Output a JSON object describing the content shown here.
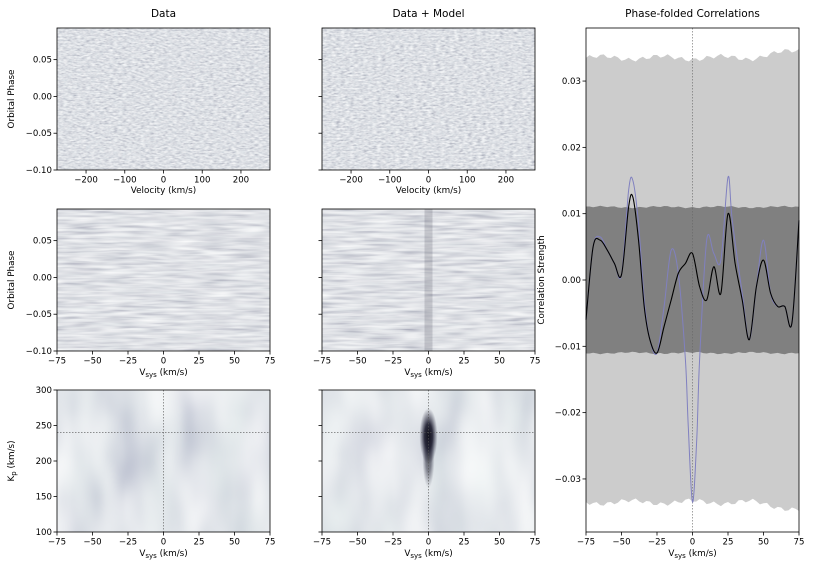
{
  "figure": {
    "columns": [
      "Data",
      "Data + Model",
      "Phase-folded Correlations"
    ]
  },
  "chart_data": [
    {
      "id": "data-phase-velocity",
      "type": "heatmap",
      "title": "Data",
      "xlabel": "Velocity (km/s)",
      "ylabel": "Orbital Phase",
      "xlim": [
        -275,
        275
      ],
      "ylim": [
        -0.1,
        0.093
      ],
      "xticks": [
        -200,
        -100,
        0,
        100,
        200
      ],
      "yticks": [
        -0.1,
        -0.05,
        0.0,
        0.05
      ],
      "ytick_labels": [
        "−0.10",
        "−0.05",
        "0.00",
        "0.05"
      ],
      "xtick_labels": [
        "−200",
        "−100",
        "0",
        "100",
        "200"
      ]
    },
    {
      "id": "datamodel-phase-velocity",
      "type": "heatmap",
      "title": "Data + Model",
      "xlabel": "Velocity (km/s)",
      "xlim": [
        -275,
        275
      ],
      "ylim": [
        -0.1,
        0.093
      ],
      "xticks": [
        -200,
        -100,
        0,
        100,
        200
      ],
      "xtick_labels": [
        "−200",
        "−100",
        "0",
        "100",
        "200"
      ]
    },
    {
      "id": "data-phase-vsys",
      "type": "heatmap",
      "xlabel": "V",
      "xlabel_sub": "sys",
      "xlabel_unit": " (km/s)",
      "ylabel": "Orbital Phase",
      "xlim": [
        -75,
        75
      ],
      "ylim": [
        -0.1,
        0.093
      ],
      "xticks": [
        -75,
        -50,
        -25,
        0,
        25,
        50,
        75
      ],
      "xtick_labels": [
        "−75",
        "−50",
        "−25",
        "0",
        "25",
        "50",
        "75"
      ],
      "yticks": [
        -0.1,
        -0.05,
        0.0,
        0.05
      ],
      "ytick_labels": [
        "−0.10",
        "−0.05",
        "0.00",
        "0.05"
      ]
    },
    {
      "id": "datamodel-phase-vsys",
      "type": "heatmap",
      "xlabel": "V",
      "xlabel_sub": "sys",
      "xlabel_unit": " (km/s)",
      "xlim": [
        -75,
        75
      ],
      "ylim": [
        -0.1,
        0.093
      ],
      "xticks": [
        -75,
        -50,
        -25,
        0,
        25,
        50,
        75
      ],
      "xtick_labels": [
        "−75",
        "−50",
        "−25",
        "0",
        "25",
        "50",
        "75"
      ]
    },
    {
      "id": "data-kp-vsys",
      "type": "heatmap",
      "xlabel": "V",
      "xlabel_sub": "sys",
      "xlabel_unit": " (km/s)",
      "ylabel": "K",
      "ylabel_sub": "p",
      "ylabel_unit": " (km/s)",
      "xlim": [
        -75,
        75
      ],
      "ylim": [
        100,
        300
      ],
      "xticks": [
        -75,
        -50,
        -25,
        0,
        25,
        50,
        75
      ],
      "xtick_labels": [
        "−75",
        "−50",
        "−25",
        "0",
        "25",
        "50",
        "75"
      ],
      "yticks": [
        100,
        150,
        200,
        250,
        300
      ],
      "ytick_labels": [
        "100",
        "150",
        "200",
        "250",
        "300"
      ],
      "guide_vsys": 0,
      "guide_kp": 240
    },
    {
      "id": "datamodel-kp-vsys",
      "type": "heatmap",
      "xlabel": "V",
      "xlabel_sub": "sys",
      "xlabel_unit": " (km/s)",
      "xlim": [
        -75,
        75
      ],
      "ylim": [
        100,
        300
      ],
      "xticks": [
        -75,
        -50,
        -25,
        0,
        25,
        50,
        75
      ],
      "xtick_labels": [
        "−75",
        "−50",
        "−25",
        "0",
        "25",
        "50",
        "75"
      ],
      "guide_vsys": 0,
      "guide_kp": 240,
      "peak": {
        "vsys": 0,
        "kp": 235
      }
    },
    {
      "id": "phase-folded-correlations",
      "type": "line",
      "title": "Phase-folded Correlations",
      "xlabel": "V",
      "xlabel_sub": "sys",
      "xlabel_unit": " (km/s)",
      "ylabel": "Correlation Strength",
      "xlim": [
        -75,
        75
      ],
      "ylim": [
        -0.038,
        0.038
      ],
      "xticks": [
        -75,
        -50,
        -25,
        0,
        25,
        50,
        75
      ],
      "xtick_labels": [
        "−75",
        "−50",
        "−25",
        "0",
        "25",
        "50",
        "75"
      ],
      "yticks": [
        -0.03,
        -0.02,
        -0.01,
        0.0,
        0.01,
        0.02,
        0.03
      ],
      "ytick_labels": [
        "−0.03",
        "−0.02",
        "−0.01",
        "0.00",
        "0.01",
        "0.02",
        "0.03"
      ],
      "bands": [
        {
          "level": "3sigma",
          "lower": -0.0335,
          "upper": 0.0335,
          "color": "#cccccc"
        },
        {
          "level": "1sigma",
          "lower": -0.011,
          "upper": 0.011,
          "color": "#808080"
        }
      ],
      "guide_vsys": 0,
      "series": [
        {
          "color": "#000000",
          "x": [
            -75,
            -70,
            -65,
            -60,
            -55,
            -50,
            -45,
            -42,
            -38,
            -34,
            -30,
            -25,
            -20,
            -15,
            -10,
            -5,
            0,
            5,
            10,
            15,
            20,
            25,
            30,
            35,
            40,
            45,
            50,
            55,
            60,
            65,
            70,
            75
          ],
          "values": [
            -0.006,
            0.005,
            0.006,
            0.0045,
            0.0025,
            0.0008,
            0.011,
            0.0125,
            0.006,
            -0.004,
            -0.009,
            -0.011,
            -0.007,
            -0.003,
            0.001,
            0.0025,
            0.004,
            -0.001,
            -0.003,
            0.002,
            -0.002,
            0.01,
            0.0025,
            -0.003,
            -0.009,
            -0.001,
            0.003,
            -0.002,
            -0.004,
            -0.004,
            -0.0065,
            0.009
          ]
        },
        {
          "color": "#8080c0",
          "x": [
            -75,
            -70,
            -65,
            -60,
            -55,
            -50,
            -45,
            -42,
            -38,
            -34,
            -30,
            -25,
            -20,
            -15,
            -10,
            -5,
            -3,
            0,
            3,
            5,
            10,
            15,
            20,
            25,
            28,
            35,
            40,
            45,
            50,
            55,
            60,
            65,
            70,
            75
          ],
          "values": [
            -0.006,
            0.005,
            0.0065,
            0.0045,
            0.0025,
            0.0008,
            0.0135,
            0.015,
            0.0085,
            -0.003,
            -0.009,
            -0.011,
            -0.004,
            0.0045,
            0.001,
            -0.012,
            -0.022,
            -0.0335,
            -0.024,
            -0.012,
            0.006,
            0.004,
            0.003,
            0.0155,
            0.009,
            -0.002,
            -0.009,
            -0.001,
            0.006,
            -0.002,
            -0.004,
            -0.004,
            -0.0065,
            0.009
          ]
        }
      ]
    }
  ]
}
